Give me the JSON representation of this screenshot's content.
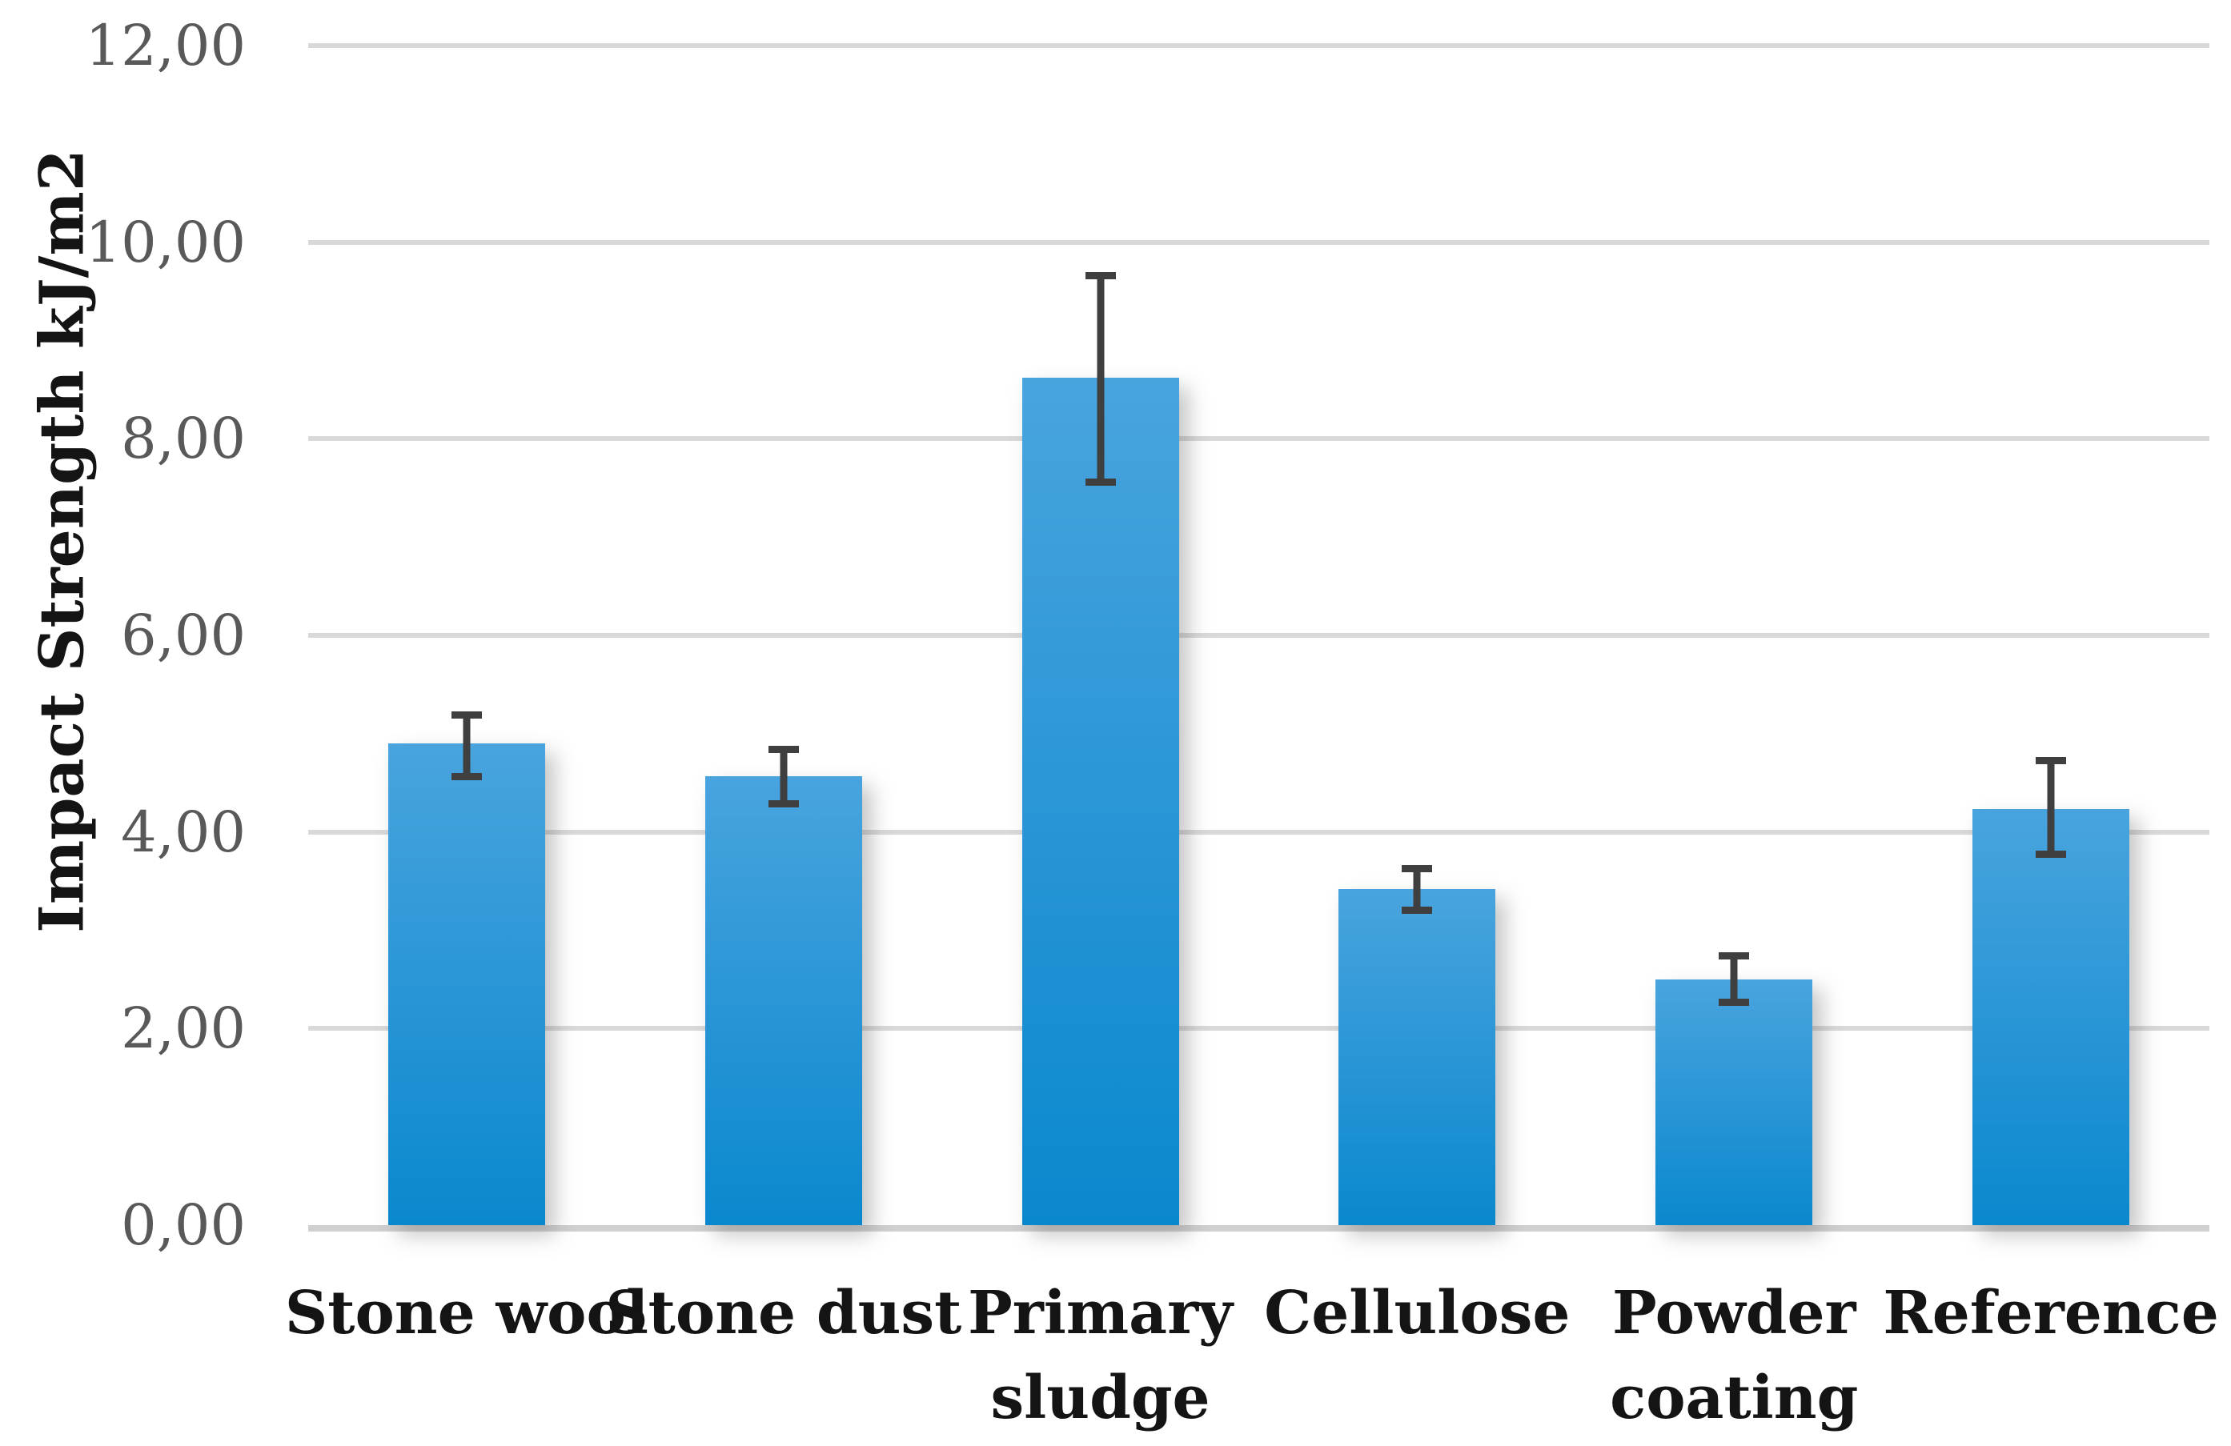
{
  "chart_data": {
    "type": "bar",
    "title": "",
    "xlabel": "",
    "ylabel": "Impact Strength kJ/m2",
    "ylim": [
      0,
      12
    ],
    "ytick_step": 2,
    "ytick_labels": [
      "0,00",
      "2,00",
      "4,00",
      "6,00",
      "8,00",
      "10,00",
      "12,00"
    ],
    "decimal_separator": ",",
    "grid": true,
    "legend_position": "none",
    "categories": [
      "Stone wool",
      "Stone dust",
      "Primary sludge",
      "Cellulose",
      "Powder coating",
      "Reference"
    ],
    "series": [
      {
        "name": "Impact Strength",
        "values": [
          4.9,
          4.57,
          8.62,
          3.42,
          2.5,
          4.23
        ],
        "error_low": [
          4.53,
          4.25,
          7.52,
          3.17,
          2.23,
          3.74
        ],
        "error_high": [
          5.23,
          4.88,
          9.7,
          3.66,
          2.78,
          4.76
        ]
      }
    ],
    "colors": {
      "bar_gradient_top": "#49a4de",
      "bar_gradient_bottom": "#0a88ce",
      "error_bar": "#3f3f3f",
      "gridline": "#d9d9d9",
      "axis_line": "#d0d0d0",
      "tick_label": "#595959",
      "category_label": "#141414"
    }
  }
}
